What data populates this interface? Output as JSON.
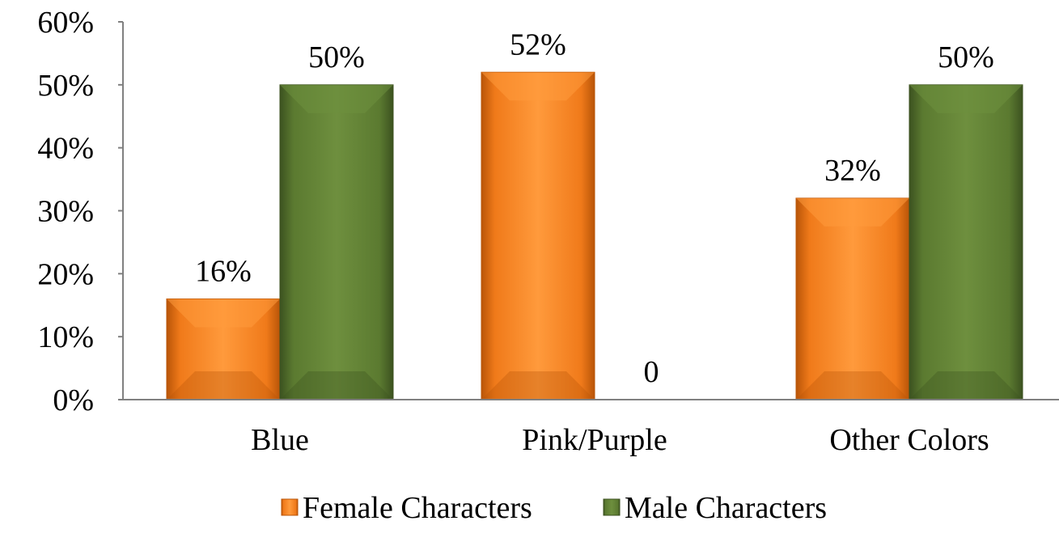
{
  "chart_data": {
    "type": "bar",
    "categories": [
      "Blue",
      "Pink/Purple",
      "Other Colors"
    ],
    "series": [
      {
        "name": "Female Characters",
        "values": [
          16,
          52,
          32
        ],
        "labels": [
          "16%",
          "52%",
          "32%"
        ],
        "color": "#F07A1A",
        "color_light": "#FF9A3C",
        "color_dark": "#B95508"
      },
      {
        "name": "Male Characters",
        "values": [
          50,
          0,
          50
        ],
        "labels": [
          "50%",
          "0",
          "50%"
        ],
        "color": "#5B7A30",
        "color_light": "#6E8F3E",
        "color_dark": "#3C5220"
      }
    ],
    "ylim": [
      0,
      60
    ],
    "yticks": [
      0,
      10,
      20,
      30,
      40,
      50,
      60
    ],
    "ytick_labels": [
      "0%",
      "10%",
      "20%",
      "30%",
      "40%",
      "50%",
      "60%"
    ],
    "grid": false,
    "legend_position": "bottom",
    "axis_color": "#808080"
  }
}
